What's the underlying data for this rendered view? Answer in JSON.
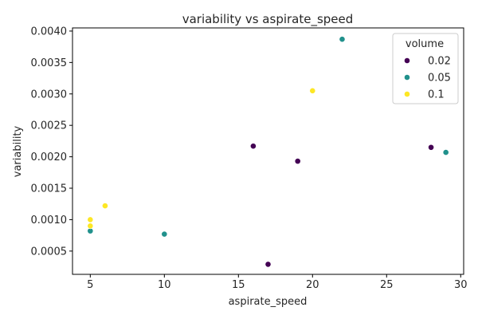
{
  "chart_data": {
    "type": "scatter",
    "title": "variability vs aspirate_speed",
    "xlabel": "aspirate_speed",
    "ylabel": "variability",
    "xlim": [
      3.8,
      30.2
    ],
    "ylim": [
      0.00013,
      0.00405
    ],
    "xticks": [
      5,
      10,
      15,
      20,
      25,
      30
    ],
    "xtick_labels": [
      "5",
      "10",
      "15",
      "20",
      "25",
      "30"
    ],
    "yticks": [
      0.0005,
      0.001,
      0.0015,
      0.002,
      0.0025,
      0.003,
      0.0035,
      0.004
    ],
    "ytick_labels": [
      "0.0005",
      "0.0010",
      "0.0015",
      "0.0020",
      "0.0025",
      "0.0030",
      "0.0035",
      "0.0040"
    ],
    "grid": false,
    "legend": {
      "title": "volume",
      "position": "top-right"
    },
    "series": [
      {
        "name": "0.02",
        "color": "#440154",
        "points": [
          {
            "x": 16,
            "y": 0.00217
          },
          {
            "x": 19,
            "y": 0.00193
          },
          {
            "x": 28,
            "y": 0.00215
          },
          {
            "x": 17,
            "y": 0.00029
          }
        ]
      },
      {
        "name": "0.05",
        "color": "#21918c",
        "points": [
          {
            "x": 22,
            "y": 0.00387
          },
          {
            "x": 29,
            "y": 0.00207
          },
          {
            "x": 5,
            "y": 0.00082
          },
          {
            "x": 10,
            "y": 0.00077
          }
        ]
      },
      {
        "name": "0.1",
        "color": "#fde725",
        "points": [
          {
            "x": 20,
            "y": 0.00305
          },
          {
            "x": 6,
            "y": 0.00122
          },
          {
            "x": 5,
            "y": 0.001
          },
          {
            "x": 5,
            "y": 0.0009
          }
        ]
      }
    ]
  }
}
